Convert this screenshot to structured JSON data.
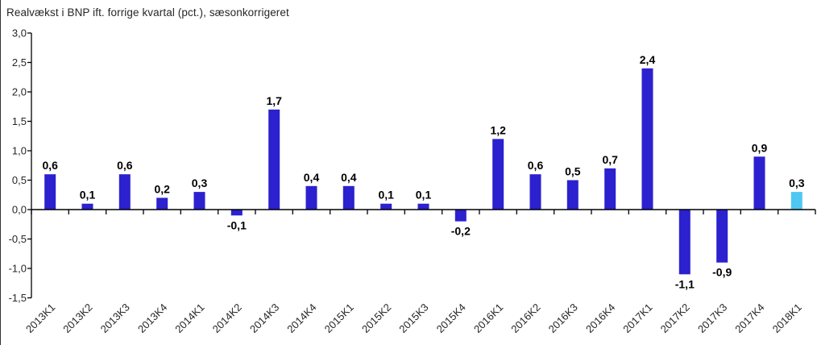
{
  "chart_data": {
    "type": "bar",
    "title": "Realvækst i BNP ift. forrige kvartal (pct.), sæsonkorrigeret",
    "categories": [
      "2013K1",
      "2013K2",
      "2013K3",
      "2013K4",
      "2014K1",
      "2014K2",
      "2014K3",
      "2014K4",
      "2015K1",
      "2015K2",
      "2015K3",
      "2015K4",
      "2016K1",
      "2016K2",
      "2016K3",
      "2016K4",
      "2017K1",
      "2017K2",
      "2017K3",
      "2017K4",
      "2018K1"
    ],
    "values": [
      0.6,
      0.1,
      0.6,
      0.2,
      0.3,
      -0.1,
      1.7,
      0.4,
      0.4,
      0.1,
      0.1,
      -0.2,
      1.2,
      0.6,
      0.5,
      0.7,
      2.4,
      -1.1,
      -0.9,
      0.9,
      0.3
    ],
    "value_labels": [
      "0,6",
      "0,1",
      "0,6",
      "0,2",
      "0,3",
      "-0,1",
      "1,7",
      "0,4",
      "0,4",
      "0,1",
      "0,1",
      "-0,2",
      "1,2",
      "0,6",
      "0,5",
      "0,7",
      "2,4",
      "-1,1",
      "-0,9",
      "0,9",
      "0,3"
    ],
    "ylim": [
      -1.5,
      3.0
    ],
    "ytick_step": 0.5,
    "ytick_labels": [
      "3,0",
      "2,5",
      "2,0",
      "1,5",
      "1,0",
      "0,5",
      "0,0",
      "-0,5",
      "-1,0",
      "-1,5"
    ],
    "xlabel": "",
    "ylabel": "",
    "grid": false,
    "legend": "none",
    "bar_color": "#2B21CE",
    "highlight_color": "#4EC7F2",
    "highlight_index": 20,
    "axis_color": "#000000",
    "tick_text_color": "#262626",
    "value_label_color": "#000000"
  }
}
